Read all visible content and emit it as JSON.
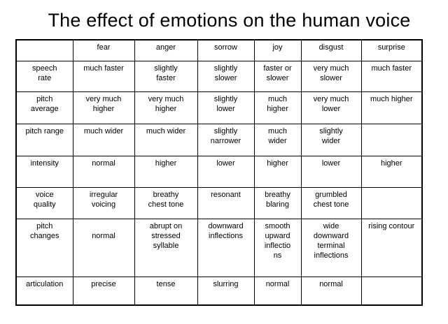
{
  "title": "The effect of emotions on the human voice",
  "table": {
    "headers": [
      "",
      "fear",
      "anger",
      "sorrow",
      "joy",
      "disgust",
      "surprise"
    ],
    "rows": [
      {
        "label": "speech\nrate",
        "cells": [
          "much faster",
          "slightly\nfaster",
          "slightly\nslower",
          "faster or\nslower",
          "very much\nslower",
          "much faster"
        ]
      },
      {
        "label": "pitch\naverage",
        "cells": [
          "very much\nhigher",
          "very much\nhigher",
          "slightly\nlower",
          "much\nhigher",
          "very much\nlower",
          "much higher"
        ]
      },
      {
        "label": "pitch range",
        "cells": [
          "much wider",
          "much wider",
          "slightly\nnarrower",
          "much\nwider",
          "slightly\nwider",
          ""
        ]
      },
      {
        "label": "intensity",
        "cells": [
          "normal",
          "higher",
          "lower",
          "higher",
          "lower",
          "higher"
        ]
      },
      {
        "label": "voice\nquality",
        "cells": [
          "irregular\nvoicing",
          "breathy\nchest tone",
          "resonant",
          "breathy\nblaring",
          "grumbled\nchest tone",
          ""
        ]
      },
      {
        "label": "pitch\nchanges",
        "cells": [
          "normal",
          "abrupt on\nstressed\nsyllable",
          "downward\ninflections",
          "smooth\nupward\ninflectio\nns",
          "wide\ndownward\nterminal\ninflections",
          "rising contour"
        ]
      },
      {
        "label": "articulation",
        "cells": [
          "precise",
          "tense",
          "slurring",
          "normal",
          "normal",
          ""
        ]
      }
    ]
  }
}
